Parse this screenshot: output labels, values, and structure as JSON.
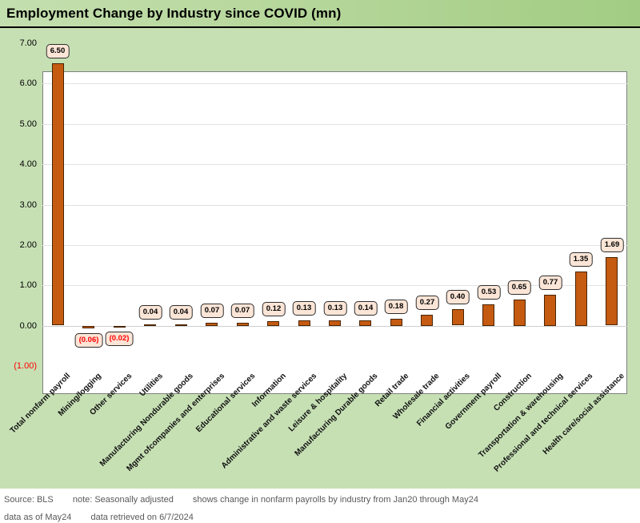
{
  "title": "Employment Change by Industry since COVID (mn)",
  "footer": {
    "source": "Source: BLS",
    "note": "note: Seasonally adjusted",
    "description": "shows change in nonfarm payrolls by industry from Jan20 through May24",
    "as_of": "data as of May24",
    "retrieved": "data retrieved on 6/7/2024"
  },
  "colors": {
    "title_band_green": "#a9d08e",
    "chart_area_green": "#c6e0b4",
    "bar_fill": "#c55a11",
    "bar_border": "#4a2504",
    "label_box_fill": "#fbe5d6",
    "negative_text": "#ff0000",
    "footer_text": "#595959",
    "plot_border": "#7f7f7f"
  },
  "chart_data": {
    "type": "bar",
    "title": "Employment Change by Industry since COVID (mn)",
    "xlabel": "",
    "ylabel": "",
    "ylim": [
      -1,
      7
    ],
    "grid": true,
    "legend": false,
    "categories": [
      "Total nonfarm payroll",
      "Mining/logging",
      "Other services",
      "Utilities",
      "Manufacturing Nondurable goods",
      "Mgmt ofcompanies and enterprises",
      "Educational services",
      "Information",
      "Administrative and waste services",
      "Leisure & hospitality",
      "Manufacturing Durable goods",
      "Retail trade",
      "Wholesale trade",
      "Financial activities",
      "Government payroll",
      "Construction",
      "Transportation & warehousing",
      "Professional and technical services",
      "Health care/social assistance"
    ],
    "values": [
      6.5,
      -0.06,
      -0.02,
      0.04,
      0.04,
      0.07,
      0.07,
      0.12,
      0.13,
      0.13,
      0.14,
      0.18,
      0.27,
      0.4,
      0.53,
      0.65,
      0.77,
      1.35,
      1.69
    ],
    "value_labels": [
      "6.50",
      "(0.06)",
      "(0.02)",
      "0.04",
      "0.04",
      "0.07",
      "0.07",
      "0.12",
      "0.13",
      "0.13",
      "0.14",
      "0.18",
      "0.27",
      "0.40",
      "0.53",
      "0.65",
      "0.77",
      "1.35",
      "1.69"
    ],
    "yticks": [
      {
        "value": 7,
        "label": "7.00"
      },
      {
        "value": 6,
        "label": "6.00"
      },
      {
        "value": 5,
        "label": "5.00"
      },
      {
        "value": 4,
        "label": "4.00"
      },
      {
        "value": 3,
        "label": "3.00"
      },
      {
        "value": 2,
        "label": "2.00"
      },
      {
        "value": 1,
        "label": "1.00"
      },
      {
        "value": 0,
        "label": "0.00"
      },
      {
        "value": -1,
        "label": "(1.00)"
      }
    ]
  }
}
